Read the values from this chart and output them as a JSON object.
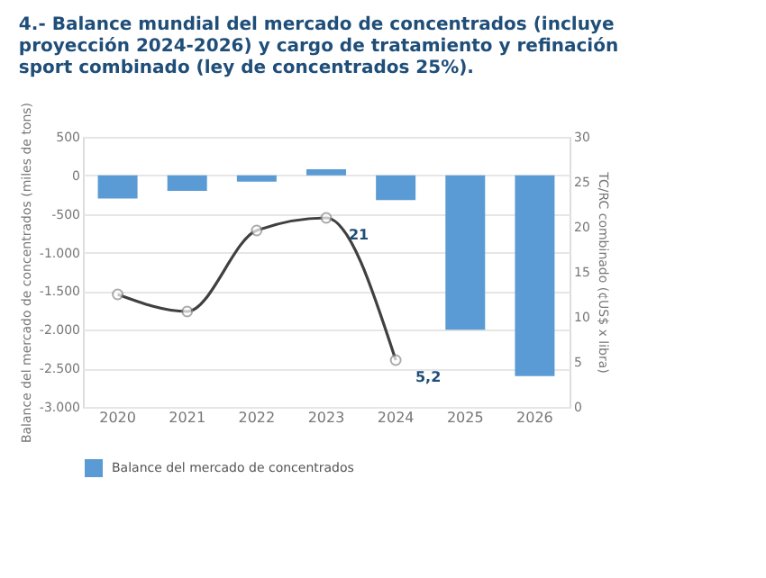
{
  "chart_data": {
    "type": "bar",
    "title": "4.- Balance mundial del mercado de concentrados (incluye proyección 2024-2026) y cargo de tratamiento y refinación sport combinado (ley de concentrados 25%).",
    "ylabel": "Balance del mercado de concentrados (miles de tons)",
    "y2label": "TC/RC combinado (¢US$ x libra)",
    "categories": [
      "2020",
      "2021",
      "2022",
      "2023",
      "2024",
      "2025",
      "2026"
    ],
    "series": [
      {
        "name": "Balance del mercado de concentrados",
        "color": "#5b9bd5",
        "values": [
          -300,
          -200,
          -80,
          80,
          -320,
          -2000,
          -2600
        ]
      },
      {
        "type": "line",
        "axis": "y2",
        "color": "#404040",
        "marker": "circle",
        "values": [
          12.5,
          10.6,
          19.6,
          21,
          5.2,
          null,
          null
        ],
        "value_labels": [
          null,
          null,
          null,
          "21",
          "5,2",
          null,
          null
        ]
      }
    ],
    "ylim": [
      -3000,
      500
    ],
    "yticks": [
      {
        "value": -3000,
        "label": "-3.000"
      },
      {
        "value": -2500,
        "label": "-2.500"
      },
      {
        "value": -2000,
        "label": "-2.000"
      },
      {
        "value": -1500,
        "label": "-1.500"
      },
      {
        "value": -1000,
        "label": "-1.000"
      },
      -500,
      0,
      500
    ],
    "y2lim": [
      0,
      30
    ],
    "y2ticks": [
      0,
      5,
      10,
      15,
      20,
      25,
      30
    ],
    "grid": "y",
    "legend": "bottom"
  }
}
